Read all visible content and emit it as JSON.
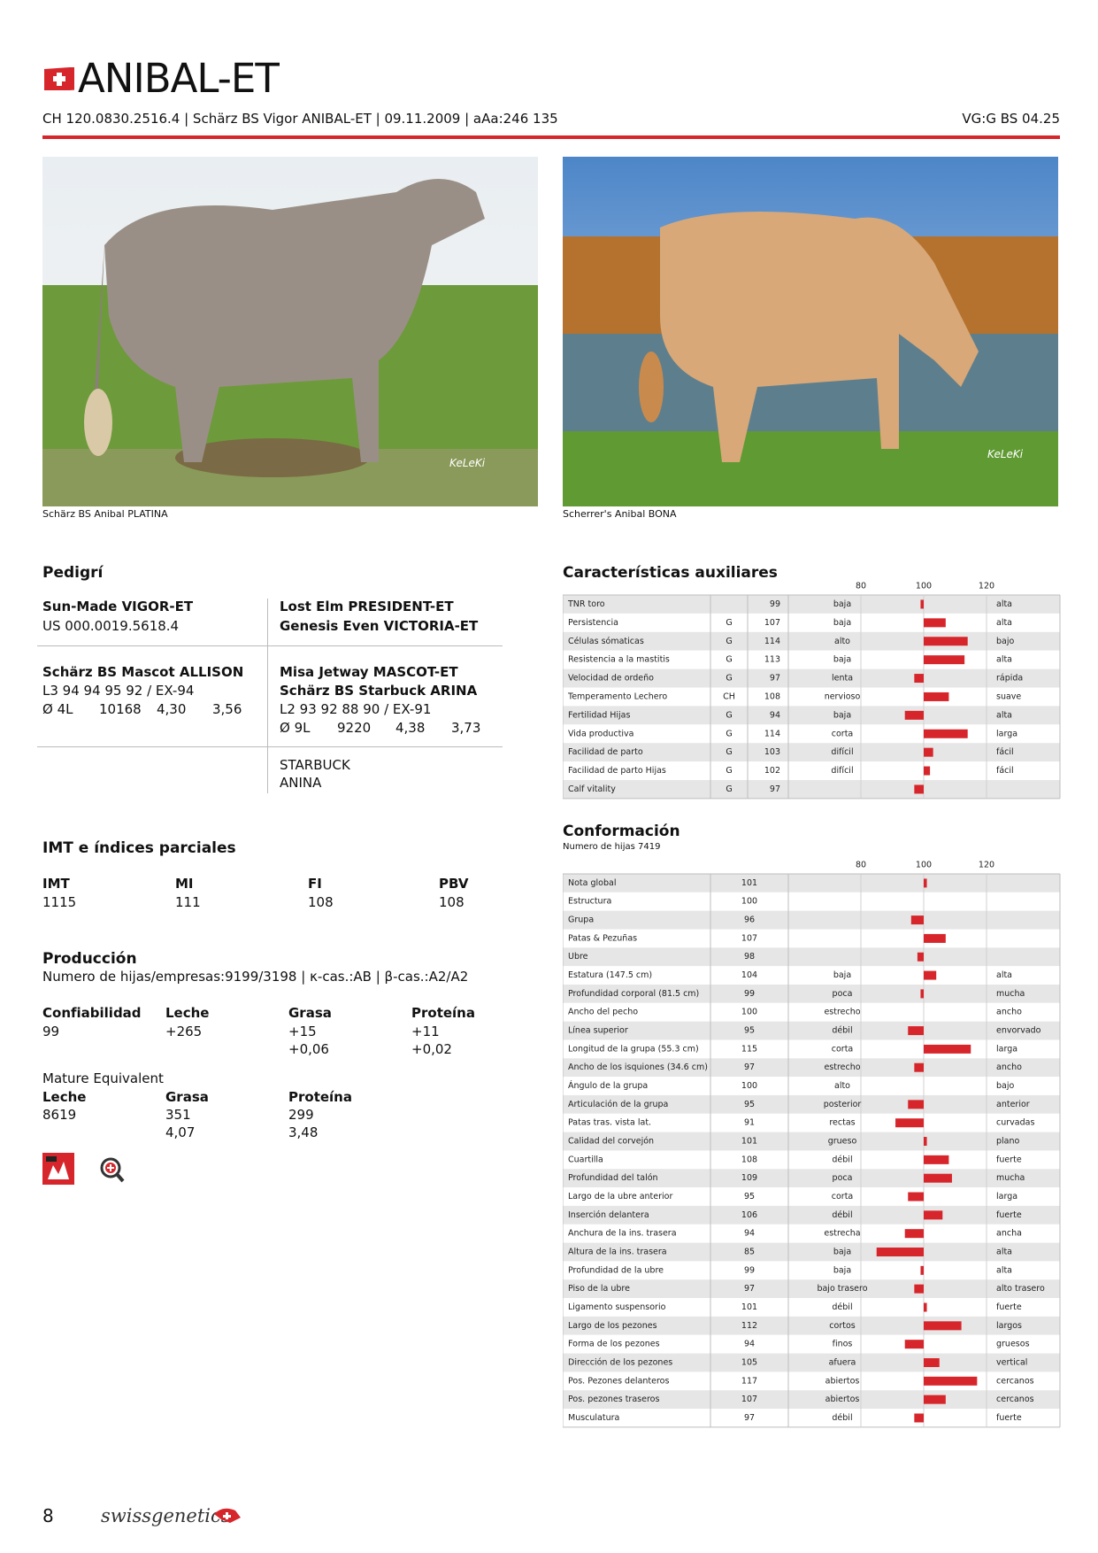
{
  "header": {
    "title": "ANIBAL-ET",
    "id_line": "CH 120.0830.2516.4 | Schärz BS Vigor ANIBAL-ET | 09.11.2009 | aAa:246 135",
    "classification": "VG:G BS 04.25"
  },
  "photos": [
    {
      "caption": "Schärz BS Anibal PLATINA",
      "watermark": "KeLeKi"
    },
    {
      "caption": "Scherrer's Anibal BONA",
      "watermark": "KeLeKi"
    }
  ],
  "pedigree": {
    "title": "Pedigrí",
    "sire": {
      "name": "Sun-Made VIGOR-ET",
      "id": "US 000.0019.5618.4"
    },
    "sire_parents": {
      "sire": "Lost Elm PRESIDENT-ET",
      "dam": "Genesis Even VICTORIA-ET"
    },
    "dam": {
      "name": "Schärz BS Mascot ALLISON",
      "classification": "L3 94 94 95 92 / EX-94",
      "lactation": [
        "Ø 4L",
        "10168",
        "4,30",
        "3,56"
      ]
    },
    "dam_parents": {
      "sire": "Misa Jetway MASCOT-ET",
      "dam": "Schärz BS Starbuck ARINA",
      "classification": "L2 93 92 88 90 / EX-91",
      "lactation": [
        "Ø 9L",
        "9220",
        "4,38",
        "3,73"
      ]
    },
    "granddam_parents": {
      "sire": "STARBUCK",
      "dam": "ANINA"
    }
  },
  "indices": {
    "title": "IMT e índices parciales",
    "items": [
      {
        "label": "IMT",
        "value": 1115
      },
      {
        "label": "MI",
        "value": 111
      },
      {
        "label": "FI",
        "value": 108
      },
      {
        "label": "PBV",
        "value": 108
      }
    ]
  },
  "production": {
    "title": "Producción",
    "info": "Numero de hijas/empresas:9199/3198 | κ-cas.:AB | β-cas.:A2/A2",
    "columns": [
      {
        "label": "Confiabilidad",
        "values": [
          "99"
        ]
      },
      {
        "label": "Leche",
        "values": [
          "+265"
        ]
      },
      {
        "label": "Grasa",
        "values": [
          "+15",
          "+0,06"
        ]
      },
      {
        "label": "Proteína",
        "values": [
          "+11",
          "+0,02"
        ]
      }
    ],
    "mature_equivalent": {
      "title": "Mature Equivalent",
      "columns": [
        {
          "label": "Leche",
          "values": [
            "8619"
          ]
        },
        {
          "label": "Grasa",
          "values": [
            "351",
            "4,07"
          ]
        },
        {
          "label": "Proteína",
          "values": [
            "299",
            "3,48"
          ]
        }
      ]
    }
  },
  "footer": {
    "page": "8",
    "brand": "swissgenetics"
  },
  "chart_data": [
    {
      "type": "bar",
      "title": "Características auxiliares",
      "color": "#d7262b",
      "origin": 100,
      "xlim": [
        80,
        120
      ],
      "xticks": [
        80,
        100,
        120
      ],
      "categories": [
        "TNR toro",
        "Persistencia",
        "Células sómaticas",
        "Resistencia a la mastitis",
        "Velocidad de ordeño",
        "Temperamento Lechero",
        "Fertilidad Hijas",
        "Vida productiva",
        "Facilidad de parto",
        "Facilidad de parto Hijas",
        "Calf vitality"
      ],
      "codes": [
        null,
        "G",
        "G",
        "G",
        "G",
        "CH",
        "G",
        "G",
        "G",
        "G",
        "G"
      ],
      "values": [
        99,
        107,
        114,
        113,
        97,
        108,
        94,
        114,
        103,
        102,
        97
      ],
      "low_labels": [
        "baja",
        "baja",
        "alto",
        "baja",
        "lenta",
        "nervioso",
        "baja",
        "corta",
        "difícil",
        "difícil",
        null
      ],
      "high_labels": [
        "alta",
        "alta",
        "bajo",
        "alta",
        "rápida",
        "suave",
        "alta",
        "larga",
        "fácil",
        "fácil",
        null
      ]
    },
    {
      "type": "bar",
      "title": "Conformación",
      "subtitle": "Numero de hijas 7419",
      "color": "#d7262b",
      "origin": 100,
      "xlim": [
        80,
        120
      ],
      "xticks": [
        80,
        100,
        120
      ],
      "categories": [
        "Nota global",
        "Estructura",
        "Grupa",
        "Patas & Pezuñas",
        "Ubre",
        "Estatura (147.5 cm)",
        "Profundidad corporal (81.5 cm)",
        "Ancho del pecho",
        "Línea superior",
        "Longitud de la grupa (55.3 cm)",
        "Ancho de los isquiones (34.6 cm)",
        "Ángulo de la grupa",
        "Articulación de la grupa",
        "Patas tras. vista lat.",
        "Calidad del corvejón",
        "Cuartilla",
        "Profundidad del talón",
        "Largo de la ubre anterior",
        "Inserción delantera",
        "Anchura de la ins. trasera",
        "Altura de la ins. trasera",
        "Profundidad de la ubre",
        "Piso de la ubre",
        "Ligamento suspensorio",
        "Largo de los pezones",
        "Forma de los pezones",
        "Dirección de los pezones",
        "Pos. Pezones delanteros",
        "Pos. pezones traseros",
        "Musculatura"
      ],
      "values": [
        101,
        100,
        96,
        107,
        98,
        104,
        99,
        100,
        95,
        115,
        97,
        100,
        95,
        91,
        101,
        108,
        109,
        95,
        106,
        94,
        85,
        99,
        97,
        101,
        112,
        94,
        105,
        117,
        107,
        97
      ],
      "low_labels": [
        null,
        null,
        null,
        null,
        null,
        "baja",
        "poca",
        "estrecho",
        "débil",
        "corta",
        "estrecho",
        "alto",
        "posterior",
        "rectas",
        "grueso",
        "débil",
        "poca",
        "corta",
        "débil",
        "estrecha",
        "baja",
        "baja",
        "bajo trasero",
        "débil",
        "cortos",
        "finos",
        "afuera",
        "abiertos",
        "abiertos",
        "débil"
      ],
      "high_labels": [
        null,
        null,
        null,
        null,
        null,
        "alta",
        "mucha",
        "ancho",
        "envorvado",
        "larga",
        "ancho",
        "bajo",
        "anterior",
        "curvadas",
        "plano",
        "fuerte",
        "mucha",
        "larga",
        "fuerte",
        "ancha",
        "alta",
        "alta",
        "alto trasero",
        "fuerte",
        "largos",
        "gruesos",
        "vertical",
        "cercanos",
        "cercanos",
        "fuerte"
      ]
    }
  ]
}
